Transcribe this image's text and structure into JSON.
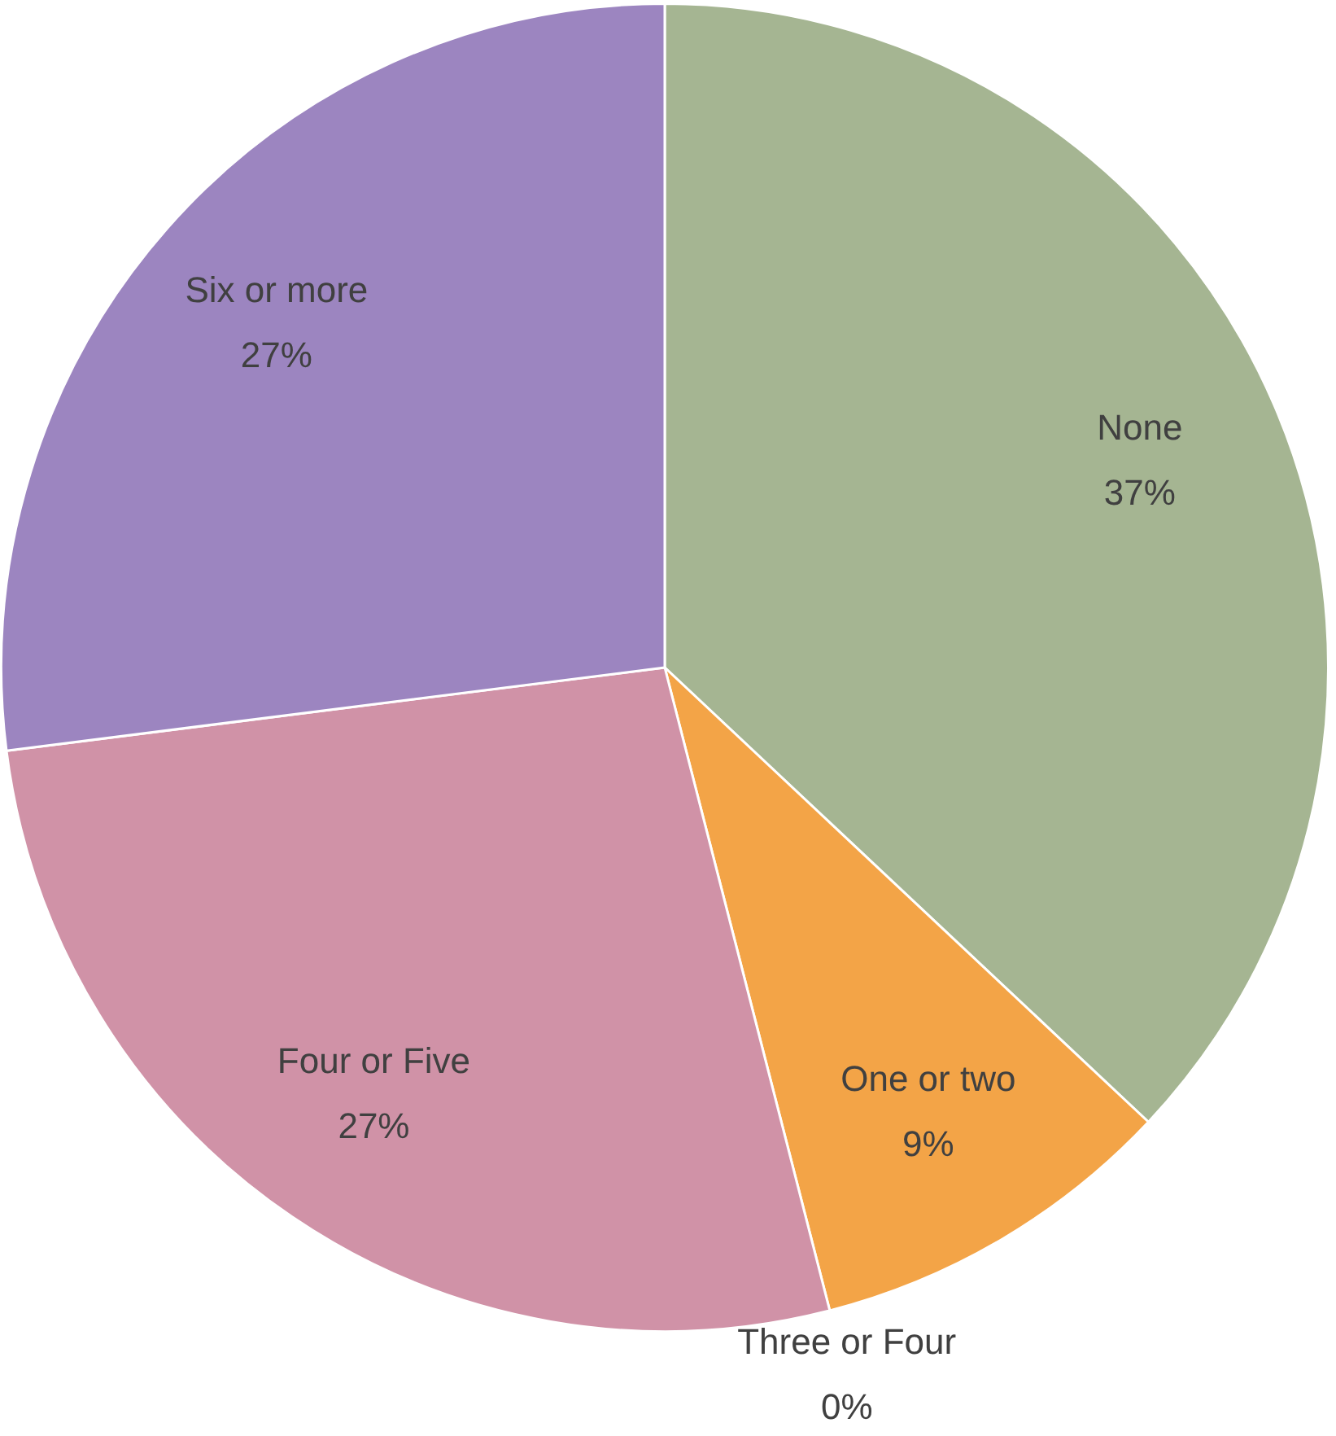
{
  "chart_data": {
    "type": "pie",
    "categories": [
      "None",
      "One or two",
      "Three or Four",
      "Four or Five",
      "Six or more"
    ],
    "values": [
      37,
      9,
      0,
      27,
      27
    ],
    "colors": [
      "#a5b592",
      "#f3a447",
      "#7fa7cf",
      "#d092a7",
      "#9c85c0"
    ],
    "value_labels": [
      "37%",
      "9%",
      "0%",
      "27%",
      "27%"
    ],
    "legend": false
  }
}
